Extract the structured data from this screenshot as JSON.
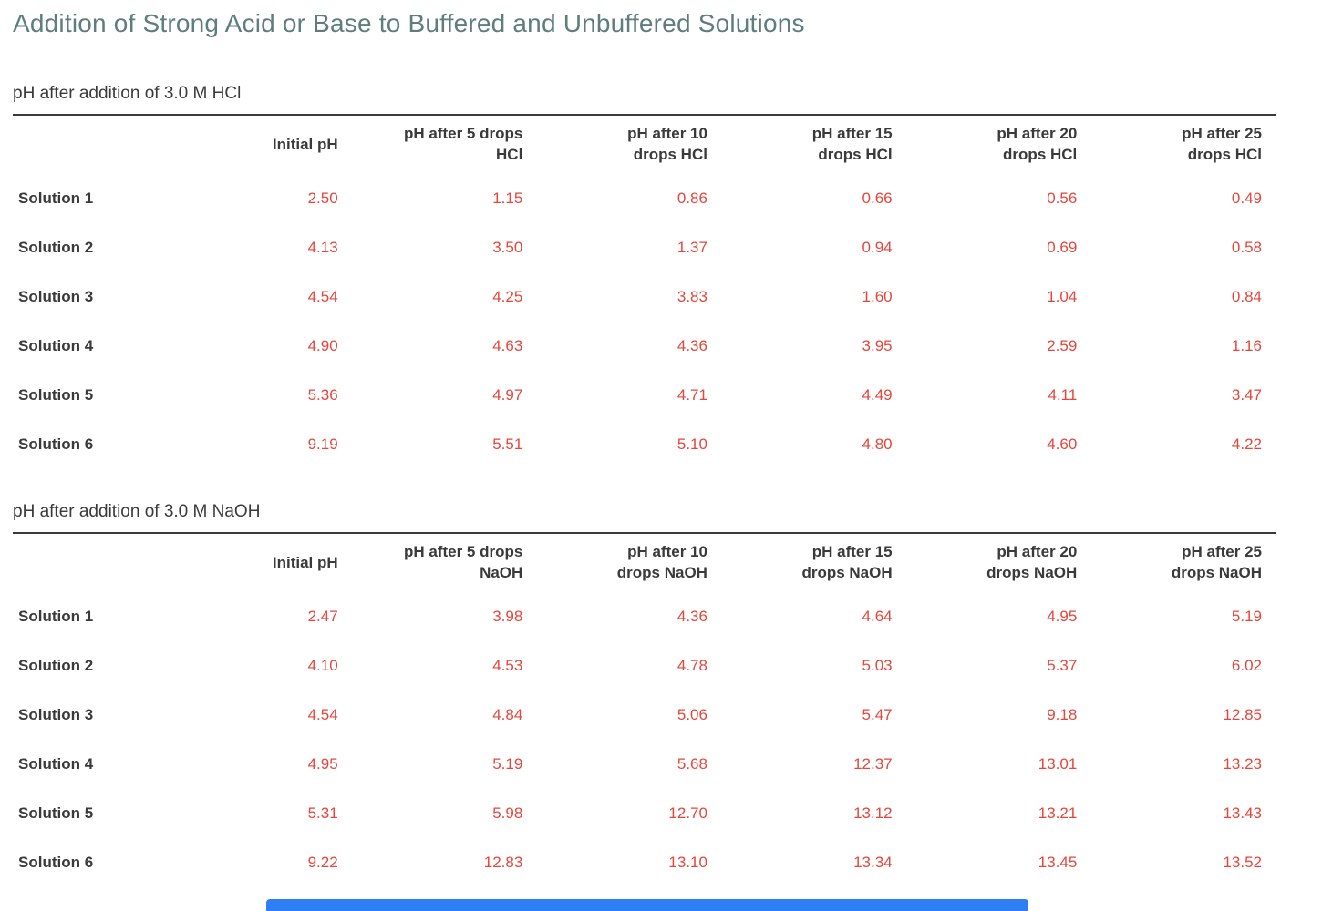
{
  "page": {
    "title": "Addition of Strong Acid or Base to Buffered and Unbuffered Solutions"
  },
  "colors": {
    "title_teal": "#5f7d7d",
    "text_dark": "#3a3a3a",
    "value_red": "#e6463c",
    "rule": "#3a3a3a",
    "scrollbar_blue": "#2e7ef7"
  },
  "chart_data": [
    {
      "type": "table",
      "title": "pH after addition of 3.0 M HCl",
      "columns": [
        "",
        "Initial pH",
        "pH after 5 drops\nHCl",
        "pH after 10\ndrops HCl",
        "pH after 15\ndrops HCl",
        "pH after 20\ndrops HCl",
        "pH after 25\ndrops HCl"
      ],
      "rows": [
        {
          "label": "Solution 1",
          "values": [
            "2.50",
            "1.15",
            "0.86",
            "0.66",
            "0.56",
            "0.49"
          ]
        },
        {
          "label": "Solution 2",
          "values": [
            "4.13",
            "3.50",
            "1.37",
            "0.94",
            "0.69",
            "0.58"
          ]
        },
        {
          "label": "Solution 3",
          "values": [
            "4.54",
            "4.25",
            "3.83",
            "1.60",
            "1.04",
            "0.84"
          ]
        },
        {
          "label": "Solution 4",
          "values": [
            "4.90",
            "4.63",
            "4.36",
            "3.95",
            "2.59",
            "1.16"
          ]
        },
        {
          "label": "Solution 5",
          "values": [
            "5.36",
            "4.97",
            "4.71",
            "4.49",
            "4.11",
            "3.47"
          ]
        },
        {
          "label": "Solution 6",
          "values": [
            "9.19",
            "5.51",
            "5.10",
            "4.80",
            "4.60",
            "4.22"
          ]
        }
      ]
    },
    {
      "type": "table",
      "title": "pH after addition of 3.0 M NaOH",
      "columns": [
        "",
        "Initial pH",
        "pH after 5 drops\nNaOH",
        "pH after 10\ndrops NaOH",
        "pH after 15\ndrops NaOH",
        "pH after 20\ndrops NaOH",
        "pH after 25\ndrops NaOH"
      ],
      "rows": [
        {
          "label": "Solution 1",
          "values": [
            "2.47",
            "3.98",
            "4.36",
            "4.64",
            "4.95",
            "5.19"
          ]
        },
        {
          "label": "Solution 2",
          "values": [
            "4.10",
            "4.53",
            "4.78",
            "5.03",
            "5.37",
            "6.02"
          ]
        },
        {
          "label": "Solution 3",
          "values": [
            "4.54",
            "4.84",
            "5.06",
            "5.47",
            "9.18",
            "12.85"
          ]
        },
        {
          "label": "Solution 4",
          "values": [
            "4.95",
            "5.19",
            "5.68",
            "12.37",
            "13.01",
            "13.23"
          ]
        },
        {
          "label": "Solution 5",
          "values": [
            "5.31",
            "5.98",
            "12.70",
            "13.12",
            "13.21",
            "13.43"
          ]
        },
        {
          "label": "Solution 6",
          "values": [
            "9.22",
            "12.83",
            "13.10",
            "13.34",
            "13.45",
            "13.52"
          ]
        }
      ]
    }
  ],
  "scrollbar": {
    "orientation": "horizontal"
  }
}
